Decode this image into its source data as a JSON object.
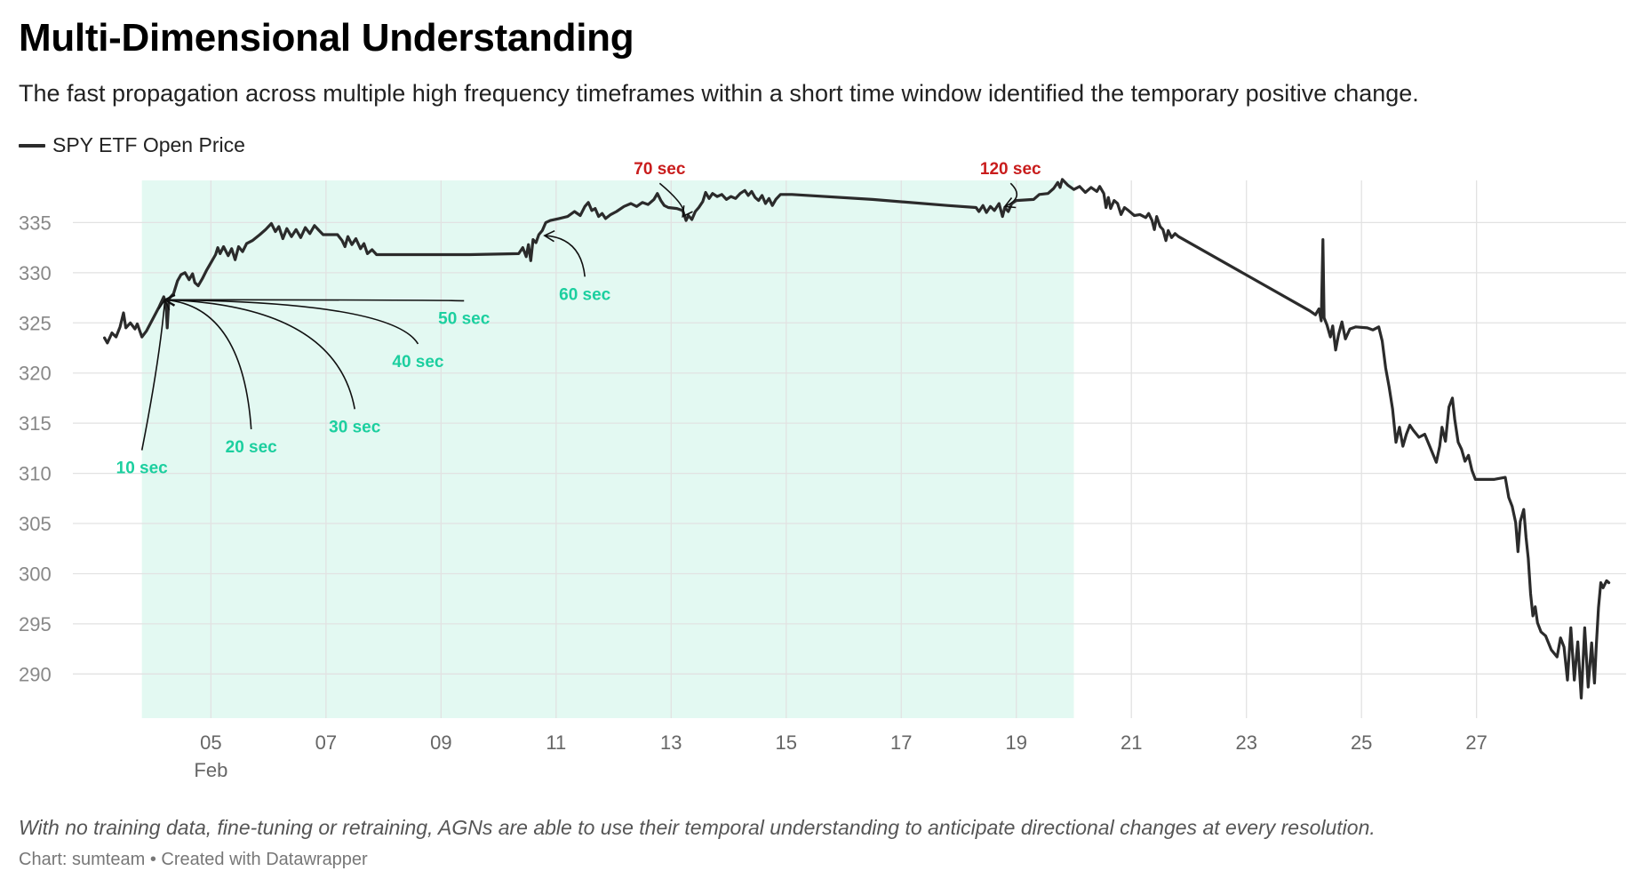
{
  "title": "Multi-Dimensional Understanding",
  "subtitle": "The fast propagation across multiple high frequency timeframes within a short time window identified the temporary positive change.",
  "note": "With no training data, fine-tuning or retraining, AGNs are able to use their temporal understanding to anticipate directional changes at every resolution.",
  "credit": "Chart: sumteam • Created with Datawrapper",
  "chart_data": {
    "type": "line",
    "series": [
      {
        "name": "SPY ETF Open Price",
        "color": "#2b2b2b",
        "points": [
          [
            3.15,
            323.5
          ],
          [
            3.2,
            323
          ],
          [
            3.28,
            324
          ],
          [
            3.35,
            323.6
          ],
          [
            3.42,
            324.6
          ],
          [
            3.48,
            326
          ],
          [
            3.52,
            324.5
          ],
          [
            3.6,
            325
          ],
          [
            3.68,
            324.4
          ],
          [
            3.72,
            324.9
          ],
          [
            3.8,
            323.6
          ],
          [
            3.88,
            324.2
          ],
          [
            4.0,
            325.5
          ],
          [
            4.1,
            326.6
          ],
          [
            4.18,
            327.6
          ],
          [
            4.22,
            326.8
          ],
          [
            4.24,
            324.5
          ],
          [
            4.27,
            327.4
          ],
          [
            4.35,
            327.9
          ],
          [
            4.42,
            329.2
          ],
          [
            4.48,
            329.8
          ],
          [
            4.55,
            330
          ],
          [
            4.62,
            329.3
          ],
          [
            4.68,
            329.9
          ],
          [
            4.72,
            329
          ],
          [
            4.78,
            328.7
          ],
          [
            4.85,
            329.4
          ],
          [
            4.92,
            330.2
          ],
          [
            5.0,
            331
          ],
          [
            5.08,
            331.8
          ],
          [
            5.12,
            332.5
          ],
          [
            5.16,
            331.9
          ],
          [
            5.22,
            332.6
          ],
          [
            5.3,
            331.7
          ],
          [
            5.36,
            332.4
          ],
          [
            5.42,
            331.3
          ],
          [
            5.48,
            332.6
          ],
          [
            5.55,
            332.1
          ],
          [
            5.62,
            332.9
          ],
          [
            5.72,
            333.2
          ],
          [
            5.85,
            333.8
          ],
          [
            5.95,
            334.3
          ],
          [
            6.05,
            334.9
          ],
          [
            6.12,
            334.1
          ],
          [
            6.18,
            334.6
          ],
          [
            6.25,
            333.4
          ],
          [
            6.32,
            334.4
          ],
          [
            6.4,
            333.6
          ],
          [
            6.48,
            334.3
          ],
          [
            6.56,
            333.5
          ],
          [
            6.64,
            334.5
          ],
          [
            6.72,
            333.9
          ],
          [
            6.8,
            334.7
          ],
          [
            6.88,
            334.2
          ],
          [
            6.95,
            333.8
          ],
          [
            7.2,
            333.8
          ],
          [
            7.28,
            333.2
          ],
          [
            7.33,
            332.6
          ],
          [
            7.38,
            333.6
          ],
          [
            7.45,
            332.8
          ],
          [
            7.52,
            333.4
          ],
          [
            7.6,
            332.4
          ],
          [
            7.66,
            332.9
          ],
          [
            7.72,
            331.9
          ],
          [
            7.8,
            332.3
          ],
          [
            7.88,
            331.8
          ],
          [
            8.4,
            331.8
          ],
          [
            9.5,
            331.8
          ],
          [
            10.35,
            331.9
          ],
          [
            10.42,
            332.5
          ],
          [
            10.48,
            331.6
          ],
          [
            10.52,
            332.8
          ],
          [
            10.56,
            331.2
          ],
          [
            10.6,
            333.3
          ],
          [
            10.65,
            333
          ],
          [
            10.7,
            333.8
          ],
          [
            10.76,
            334.2
          ],
          [
            10.82,
            335
          ],
          [
            10.9,
            335.2
          ],
          [
            11.05,
            335.4
          ],
          [
            11.2,
            335.6
          ],
          [
            11.32,
            336.1
          ],
          [
            11.42,
            335.7
          ],
          [
            11.5,
            336.6
          ],
          [
            11.56,
            337
          ],
          [
            11.62,
            336.2
          ],
          [
            11.68,
            336.4
          ],
          [
            11.74,
            335.6
          ],
          [
            11.8,
            335.9
          ],
          [
            11.86,
            335.4
          ],
          [
            11.95,
            335.8
          ],
          [
            12.05,
            336.1
          ],
          [
            12.18,
            336.6
          ],
          [
            12.3,
            336.9
          ],
          [
            12.4,
            336.6
          ],
          [
            12.5,
            337
          ],
          [
            12.6,
            336.8
          ],
          [
            12.7,
            337.3
          ],
          [
            12.76,
            337.9
          ],
          [
            12.82,
            337.2
          ],
          [
            12.88,
            336.7
          ],
          [
            12.95,
            336.5
          ],
          [
            13.1,
            336.4
          ],
          [
            13.2,
            336.2
          ],
          [
            13.26,
            335.2
          ],
          [
            13.3,
            335.7
          ],
          [
            13.36,
            335.3
          ],
          [
            13.42,
            336.1
          ],
          [
            13.48,
            336.5
          ],
          [
            13.55,
            337.1
          ],
          [
            13.6,
            338
          ],
          [
            13.66,
            337.4
          ],
          [
            13.72,
            337.9
          ],
          [
            13.8,
            337.6
          ],
          [
            13.88,
            337.8
          ],
          [
            13.96,
            337.3
          ],
          [
            14.04,
            337.6
          ],
          [
            14.12,
            337.4
          ],
          [
            14.2,
            337.9
          ],
          [
            14.28,
            338.2
          ],
          [
            14.34,
            337.7
          ],
          [
            14.4,
            338.1
          ],
          [
            14.46,
            337.5
          ],
          [
            14.52,
            337.2
          ],
          [
            14.58,
            337.7
          ],
          [
            14.64,
            336.9
          ],
          [
            14.7,
            337.4
          ],
          [
            14.76,
            336.7
          ],
          [
            14.82,
            337.3
          ],
          [
            14.9,
            337.8
          ],
          [
            15.1,
            337.8
          ],
          [
            16.5,
            337.3
          ],
          [
            17.8,
            336.7
          ],
          [
            18.3,
            336.5
          ],
          [
            18.35,
            336.1
          ],
          [
            18.42,
            336.7
          ],
          [
            18.48,
            336
          ],
          [
            18.55,
            336.6
          ],
          [
            18.62,
            336.2
          ],
          [
            18.7,
            336.9
          ],
          [
            18.76,
            335.6
          ],
          [
            18.8,
            336.5
          ],
          [
            18.86,
            336.1
          ],
          [
            18.92,
            336.9
          ],
          [
            19.0,
            337.2
          ],
          [
            19.3,
            337.3
          ],
          [
            19.4,
            337.8
          ],
          [
            19.55,
            337.9
          ],
          [
            19.65,
            338.4
          ],
          [
            19.72,
            339
          ],
          [
            19.76,
            338.5
          ],
          [
            19.8,
            339.3
          ],
          [
            19.9,
            338.7
          ],
          [
            20.0,
            338.3
          ],
          [
            20.1,
            338.6
          ],
          [
            20.2,
            338
          ],
          [
            20.3,
            338.5
          ],
          [
            20.4,
            338.1
          ],
          [
            20.45,
            338.6
          ],
          [
            20.52,
            337.9
          ],
          [
            20.56,
            336.5
          ],
          [
            20.6,
            337.5
          ],
          [
            20.64,
            336.4
          ],
          [
            20.7,
            337.2
          ],
          [
            20.76,
            336.9
          ],
          [
            20.82,
            335.8
          ],
          [
            20.88,
            336.5
          ],
          [
            20.95,
            336.2
          ],
          [
            21.05,
            335.7
          ],
          [
            21.15,
            335.8
          ],
          [
            21.25,
            335.5
          ],
          [
            21.3,
            335.9
          ],
          [
            21.36,
            335.2
          ],
          [
            21.4,
            334.3
          ],
          [
            21.44,
            335.6
          ],
          [
            21.5,
            334.6
          ],
          [
            21.55,
            334.3
          ],
          [
            21.6,
            333.2
          ],
          [
            21.64,
            334.2
          ],
          [
            21.7,
            333.5
          ],
          [
            21.76,
            333.9
          ],
          [
            21.82,
            333.6
          ],
          [
            24.1,
            326.2
          ],
          [
            24.2,
            325.8
          ],
          [
            24.26,
            326.4
          ],
          [
            24.3,
            325.2
          ],
          [
            24.33,
            333.3
          ],
          [
            24.35,
            325.5
          ],
          [
            24.4,
            324.8
          ],
          [
            24.46,
            323.6
          ],
          [
            24.5,
            324.7
          ],
          [
            24.55,
            322.3
          ],
          [
            24.6,
            323.8
          ],
          [
            24.66,
            325.1
          ],
          [
            24.72,
            323.4
          ],
          [
            24.8,
            324.4
          ],
          [
            24.9,
            324.6
          ],
          [
            25.1,
            324.5
          ],
          [
            25.2,
            324.3
          ],
          [
            25.3,
            324.6
          ],
          [
            25.36,
            323.2
          ],
          [
            25.42,
            320.5
          ],
          [
            25.48,
            318.6
          ],
          [
            25.54,
            316.4
          ],
          [
            25.6,
            313.1
          ],
          [
            25.66,
            314.6
          ],
          [
            25.72,
            312.7
          ],
          [
            25.78,
            313.9
          ],
          [
            25.84,
            314.8
          ],
          [
            25.9,
            314.3
          ],
          [
            26.0,
            313.6
          ],
          [
            26.1,
            313.9
          ],
          [
            26.2,
            312.5
          ],
          [
            26.3,
            311.1
          ],
          [
            26.36,
            312.7
          ],
          [
            26.4,
            314.6
          ],
          [
            26.46,
            313.2
          ],
          [
            26.52,
            316.6
          ],
          [
            26.58,
            317.5
          ],
          [
            26.62,
            315.4
          ],
          [
            26.68,
            313.1
          ],
          [
            26.74,
            312.4
          ],
          [
            26.8,
            311.2
          ],
          [
            26.86,
            311.8
          ],
          [
            26.92,
            310.3
          ],
          [
            26.98,
            309.4
          ],
          [
            27.1,
            309.4
          ],
          [
            27.3,
            309.4
          ],
          [
            27.5,
            309.6
          ],
          [
            27.56,
            307.6
          ],
          [
            27.62,
            306.7
          ],
          [
            27.68,
            305.1
          ],
          [
            27.72,
            302.2
          ],
          [
            27.76,
            305.2
          ],
          [
            27.82,
            306.4
          ],
          [
            27.86,
            303.6
          ],
          [
            27.9,
            301.5
          ],
          [
            27.94,
            298
          ],
          [
            27.98,
            295.8
          ],
          [
            28.02,
            296.7
          ],
          [
            28.06,
            295.1
          ],
          [
            28.12,
            294.2
          ],
          [
            28.2,
            293.8
          ],
          [
            28.3,
            292.4
          ],
          [
            28.4,
            291.7
          ],
          [
            28.46,
            293.6
          ],
          [
            28.52,
            292.7
          ],
          [
            28.58,
            289.4
          ],
          [
            28.64,
            294.6
          ],
          [
            28.7,
            289.4
          ],
          [
            28.76,
            293.2
          ],
          [
            28.82,
            287.6
          ],
          [
            28.88,
            294.6
          ],
          [
            28.94,
            288.7
          ],
          [
            29.0,
            293.1
          ],
          [
            29.05,
            289.1
          ],
          [
            29.08,
            292.6
          ],
          [
            29.12,
            296.6
          ],
          [
            29.16,
            299.1
          ],
          [
            29.2,
            298.6
          ],
          [
            29.26,
            299.3
          ],
          [
            29.3,
            299.1
          ]
        ]
      }
    ],
    "xlim": [
      2.6,
      29.6
    ],
    "ylim": [
      285.6,
      339.2
    ],
    "y_ticks": [
      290,
      295,
      300,
      305,
      310,
      315,
      320,
      325,
      330,
      335
    ],
    "x_ticks": [
      {
        "value": 5,
        "label": "05",
        "sublabel": "Feb"
      },
      {
        "value": 7,
        "label": "07"
      },
      {
        "value": 9,
        "label": "09"
      },
      {
        "value": 11,
        "label": "11"
      },
      {
        "value": 13,
        "label": "13"
      },
      {
        "value": 15,
        "label": "15"
      },
      {
        "value": 17,
        "label": "17"
      },
      {
        "value": 19,
        "label": "19"
      },
      {
        "value": 21,
        "label": "21"
      },
      {
        "value": 23,
        "label": "23"
      },
      {
        "value": 25,
        "label": "25"
      },
      {
        "value": 27,
        "label": "27"
      }
    ],
    "highlight_range": {
      "x": [
        3.8,
        20.0
      ],
      "color": "#e3f9f2"
    },
    "grid": true,
    "legend": "top-left",
    "annotations": [
      {
        "label": "10 sec",
        "color": "#1ccf9f",
        "target": [
          4.2,
          327.3
        ],
        "label_at": [
          3.8,
          310.0
        ]
      },
      {
        "label": "20 sec",
        "color": "#1ccf9f",
        "target": [
          4.2,
          327.3
        ],
        "label_at": [
          5.7,
          312.1
        ]
      },
      {
        "label": "30 sec",
        "color": "#1ccf9f",
        "target": [
          4.2,
          327.3
        ],
        "label_at": [
          7.5,
          314.1
        ]
      },
      {
        "label": "40 sec",
        "color": "#1ccf9f",
        "target": [
          4.2,
          327.3
        ],
        "label_at": [
          8.6,
          320.6
        ]
      },
      {
        "label": "50 sec",
        "color": "#1ccf9f",
        "target": [
          4.2,
          327.3
        ],
        "label_at": [
          9.4,
          324.9
        ]
      },
      {
        "label": "60 sec",
        "color": "#1ccf9f",
        "target": [
          10.8,
          333.7
        ],
        "label_at": [
          11.5,
          327.3
        ]
      },
      {
        "label": "70 sec",
        "color": "#c91c1c",
        "target": [
          13.2,
          335.6
        ],
        "label_at": [
          12.8,
          339.8
        ]
      },
      {
        "label": "120 sec",
        "color": "#c91c1c",
        "target": [
          18.8,
          336.6
        ],
        "label_at": [
          18.9,
          339.8
        ]
      }
    ]
  }
}
